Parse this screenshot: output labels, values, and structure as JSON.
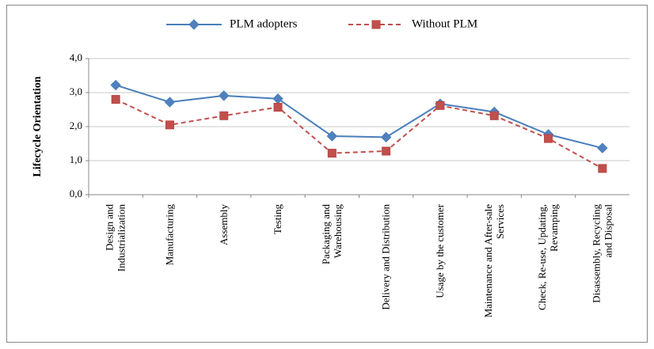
{
  "chart_data": {
    "type": "line",
    "ylabel": "Lifecycle Orientation",
    "categories": [
      "Design and\nIndustrialization",
      "Manufacturing",
      "Assembly",
      "Testing",
      "Packaging and\nWarehousing",
      "Delivery and Distribution",
      "Usage by the customer",
      "Maintenance and After-sale\nServices",
      "Check, Re-use, Updating,\nRevamping",
      "Disassembly, Recycling\nand Disposal"
    ],
    "series": [
      {
        "name": "PLM adopters",
        "color": "#4a7ebb",
        "marker": "diamond",
        "dash": false,
        "values": [
          3.22,
          2.72,
          2.91,
          2.82,
          1.72,
          1.69,
          2.67,
          2.43,
          1.77,
          1.37
        ]
      },
      {
        "name": "Without PLM",
        "color": "#c0504d",
        "marker": "square",
        "dash": true,
        "values": [
          2.8,
          2.05,
          2.32,
          2.57,
          1.22,
          1.28,
          2.62,
          2.32,
          1.65,
          0.77
        ]
      }
    ],
    "ylim": [
      0,
      4
    ],
    "yticks": [
      {
        "value": 0,
        "label": "0,0"
      },
      {
        "value": 1,
        "label": "1,0"
      },
      {
        "value": 2,
        "label": "2,0"
      },
      {
        "value": 3,
        "label": "3,0"
      },
      {
        "value": 4,
        "label": "4,0"
      }
    ],
    "grid": true,
    "legend": "top"
  }
}
